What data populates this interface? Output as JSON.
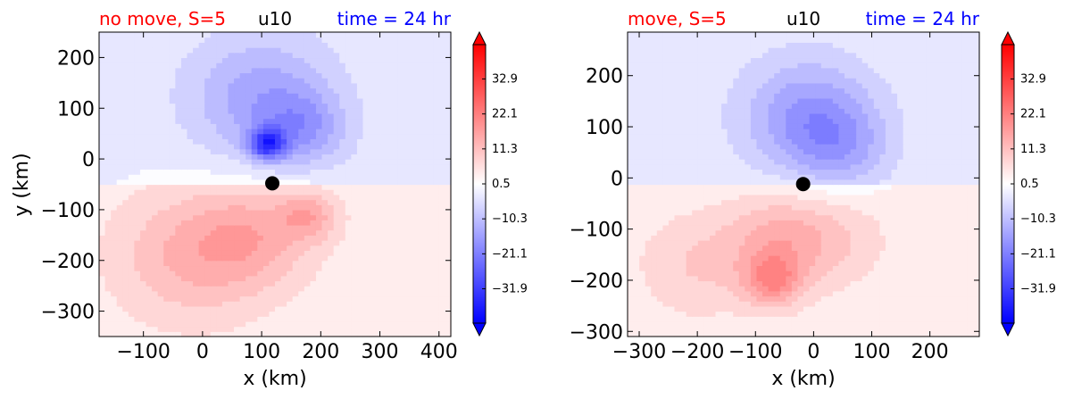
{
  "colors": {
    "left_title": "#ff0000",
    "center_title": "#000000",
    "right_title": "#0000ff",
    "cmap": [
      "#0000ff",
      "#ffffff",
      "#ff0000"
    ],
    "marker": "#000000"
  },
  "chart_data": [
    {
      "type": "heatmap",
      "title_left": "no move, S=5",
      "title_center": "u10",
      "title_right": "time = 24 hr",
      "xlabel": "x (km)",
      "ylabel": "y (km)",
      "xlim": [
        -175,
        420
      ],
      "ylim": [
        -350,
        250
      ],
      "xticks": [
        -100,
        0,
        100,
        200,
        300,
        400
      ],
      "xtick_labels": [
        "−100",
        "0",
        "100",
        "200",
        "300",
        "400"
      ],
      "yticks": [
        200,
        100,
        0,
        -100,
        -200,
        -300
      ],
      "ytick_labels": [
        "200",
        "100",
        "0",
        "−100",
        "−200",
        "−300"
      ],
      "center_marker": {
        "x": 118,
        "y": -48
      },
      "colorbar": {
        "range": [
          -42.5,
          43.5
        ],
        "ticks": [
          32.9,
          22.1,
          11.3,
          0.5,
          -10.3,
          -21.1,
          -31.9
        ],
        "tick_labels": [
          "32.9",
          "22.1",
          "11.3",
          "0.5",
          "−10.3",
          "−21.1",
          "−31.9"
        ]
      },
      "features": [
        {
          "x": 110,
          "y": 30,
          "amp": -26,
          "r": 30
        },
        {
          "x": 100,
          "y": 120,
          "amp": -12,
          "r": 120
        },
        {
          "x": 170,
          "y": 60,
          "amp": -10,
          "r": 70
        },
        {
          "x": -20,
          "y": -190,
          "amp": 10,
          "r": 130
        },
        {
          "x": 90,
          "y": -150,
          "amp": 9,
          "r": 100
        },
        {
          "x": 180,
          "y": -110,
          "amp": 10,
          "r": 50
        }
      ]
    },
    {
      "type": "heatmap",
      "title_left": "move, S=5",
      "title_center": "u10",
      "title_right": "time = 24 hr",
      "xlabel": "x (km)",
      "ylabel": "",
      "xlim": [
        -320,
        285
      ],
      "ylim": [
        -310,
        285
      ],
      "xticks": [
        -300,
        -200,
        -100,
        0,
        100,
        200
      ],
      "xtick_labels": [
        "−300",
        "−200",
        "−100",
        "0",
        "100",
        "200"
      ],
      "yticks": [
        200,
        100,
        0,
        -100,
        -200,
        -300
      ],
      "ytick_labels": [
        "200",
        "100",
        "0",
        "−100",
        "−200",
        "−300"
      ],
      "center_marker": {
        "x": -18,
        "y": -12
      },
      "colorbar": {
        "range": [
          -42.5,
          43.5
        ],
        "ticks": [
          32.9,
          22.1,
          11.3,
          0.5,
          -10.3,
          -21.1,
          -31.9
        ],
        "tick_labels": [
          "32.9",
          "22.1",
          "11.3",
          "0.5",
          "−10.3",
          "−21.1",
          "−31.9"
        ]
      },
      "features": [
        {
          "x": -10,
          "y": 120,
          "amp": -14,
          "r": 110
        },
        {
          "x": 50,
          "y": 60,
          "amp": -8,
          "r": 80
        },
        {
          "x": -70,
          "y": -200,
          "amp": 14,
          "r": 50
        },
        {
          "x": -60,
          "y": -120,
          "amp": 10,
          "r": 90
        },
        {
          "x": -200,
          "y": -170,
          "amp": 6,
          "r": 100
        },
        {
          "x": 40,
          "y": -120,
          "amp": 5,
          "r": 90
        }
      ]
    }
  ]
}
